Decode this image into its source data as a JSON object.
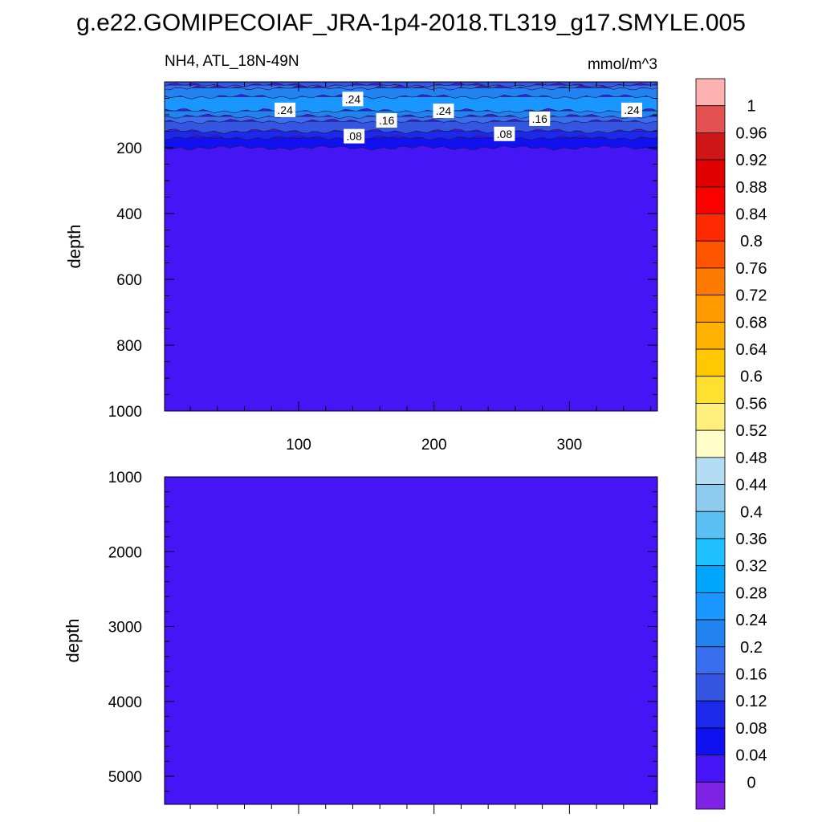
{
  "title": "g.e22.GOMIPECOIAF_JRA-1p4-2018.TL319_g17.SMYLE.005",
  "chart_data": [
    {
      "type": "heatmap",
      "panel": "upper",
      "subtitle_left": "NH4, ATL_18N-49N",
      "subtitle_right": "mmol/m^3",
      "xlabel": "",
      "ylabel": "depth",
      "xlim": [
        1,
        365
      ],
      "ylim": [
        1000,
        0
      ],
      "x_ticks": [
        100,
        200,
        300
      ],
      "x_tick_labels": [
        "100",
        "200",
        "300"
      ],
      "y_ticks": [
        200,
        400,
        600,
        800,
        1000
      ],
      "y_tick_labels": [
        "200",
        "400",
        "600",
        "800",
        "1000"
      ],
      "background_value": 0.02,
      "bands": [
        {
          "from": 0,
          "to": 10,
          "value": 0.14
        },
        {
          "from": 10,
          "to": 18,
          "value": 0.18
        },
        {
          "from": 18,
          "to": 45,
          "value": 0.22
        },
        {
          "from": 45,
          "to": 88,
          "value": 0.27
        },
        {
          "from": 88,
          "to": 105,
          "value": 0.22
        },
        {
          "from": 105,
          "to": 120,
          "value": 0.18
        },
        {
          "from": 120,
          "to": 150,
          "value": 0.14
        },
        {
          "from": 150,
          "to": 170,
          "value": 0.1
        },
        {
          "from": 170,
          "to": 200,
          "value": 0.06
        }
      ],
      "contour_labels": [
        {
          "text": ".24",
          "x": 90,
          "depth": 85
        },
        {
          "text": ".24",
          "x": 140,
          "depth": 52
        },
        {
          "text": ".16",
          "x": 165,
          "depth": 117
        },
        {
          "text": ".24",
          "x": 207,
          "depth": 88
        },
        {
          "text": ".08",
          "x": 141,
          "depth": 165
        },
        {
          "text": ".08",
          "x": 252,
          "depth": 158
        },
        {
          "text": ".16",
          "x": 278,
          "depth": 112
        },
        {
          "text": ".24",
          "x": 346,
          "depth": 85
        }
      ]
    },
    {
      "type": "heatmap",
      "panel": "lower",
      "xlabel": "",
      "ylabel": "depth",
      "xlim": [
        1,
        365
      ],
      "ylim": [
        5375,
        1000
      ],
      "y_ticks": [
        1000,
        2000,
        3000,
        4000,
        5000
      ],
      "y_tick_labels": [
        "1000",
        "2000",
        "3000",
        "4000",
        "5000"
      ],
      "background_value": 0.02
    }
  ],
  "colorbar": {
    "labels": [
      "1",
      "0.96",
      "0.92",
      "0.88",
      "0.84",
      "0.8",
      "0.76",
      "0.72",
      "0.68",
      "0.64",
      "0.6",
      "0.56",
      "0.52",
      "0.48",
      "0.44",
      "0.4",
      "0.36",
      "0.32",
      "0.28",
      "0.24",
      "0.2",
      "0.16",
      "0.12",
      "0.08",
      "0.04",
      "0"
    ],
    "colors_top_to_bottom": [
      "#fdb2b2",
      "#e35150",
      "#d01717",
      "#e00000",
      "#fc0000",
      "#ff2a00",
      "#ff5500",
      "#ff7a00",
      "#ff9a00",
      "#ffb300",
      "#ffc800",
      "#ffe030",
      "#fff07e",
      "#fffdc8",
      "#b4dcf2",
      "#8ecbee",
      "#5ac0f3",
      "#1fc0ff",
      "#00a6ff",
      "#1996ff",
      "#2283f0",
      "#3a6ef0",
      "#3456e0",
      "#1d29ea",
      "#1010f0",
      "#4515f5",
      "#7e22e6"
    ]
  }
}
